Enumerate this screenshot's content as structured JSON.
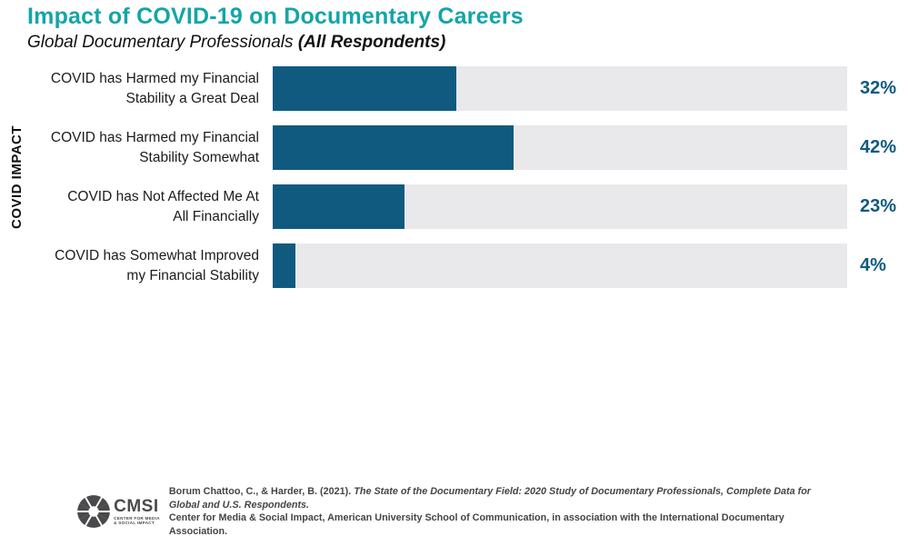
{
  "header": {
    "title": "Impact of COVID-19 on Documentary Careers",
    "subtitle_regular": "Global Documentary Professionals ",
    "subtitle_bold": "(All Respondents)"
  },
  "chart_data": {
    "type": "bar",
    "orientation": "horizontal",
    "title": "Impact of COVID-19 on Documentary Careers",
    "subtitle": "Global Documentary Professionals (All Respondents)",
    "ylabel": "COVID IMPACT",
    "xlabel": "",
    "xlim": [
      0,
      100
    ],
    "grid": false,
    "legend": false,
    "categories": [
      "COVID has Harmed my Financial\nStability a Great Deal",
      "COVID has Harmed my Financial\nStability Somewhat",
      "COVID has Not Affected Me At\nAll Financially",
      "COVID has Somewhat Improved\nmy Financial Stability"
    ],
    "values": [
      32,
      42,
      23,
      4
    ],
    "value_labels": [
      "32%",
      "42%",
      "23%",
      "4%"
    ],
    "bar_color": "#105A80",
    "track_color": "#E9E9EB"
  },
  "footer": {
    "logo_text": "CMSI",
    "logo_caption": "CENTER FOR MEDIA\n& SOCIAL IMPACT",
    "citation_line1_regular": "Borum Chattoo, C., & Harder, B. (2021). ",
    "citation_line1_italic": "The State of the Documentary Field: 2020 Study of Documentary Professionals, Complete Data for Global and U.S. Respondents.",
    "citation_line2": "Center for Media & Social Impact, American University School of Communication, in association with the International Documentary Association."
  },
  "colors": {
    "accent_teal": "#14A5A8",
    "bar_blue": "#105A80",
    "track_gray": "#E9E9EB",
    "footer_text": "#454547"
  }
}
